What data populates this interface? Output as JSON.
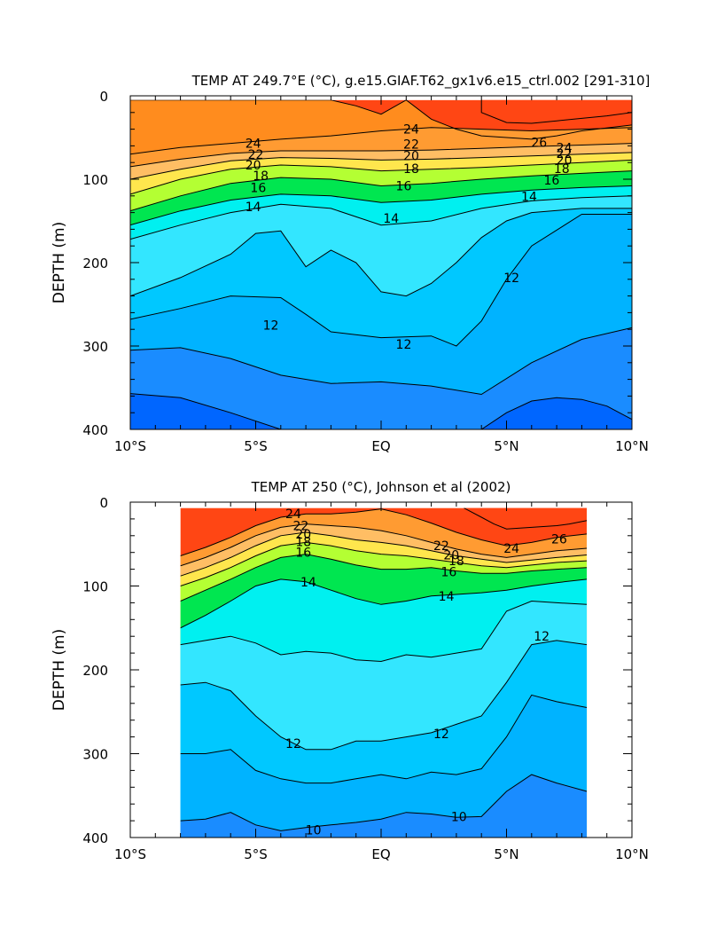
{
  "chart_data": [
    {
      "type": "contour",
      "title": "TEMP AT 249.7°E (°C), g.e15.GIAF.T62_gx1v6.e15_ctrl.002 [291-310]",
      "ylabel": "DEPTH (m)",
      "xlabel": "",
      "xlim": [
        -10,
        10
      ],
      "ylim": [
        400,
        0
      ],
      "x_ticks": [
        -10,
        -5,
        0,
        5,
        10
      ],
      "x_tick_labels": [
        "10°S",
        "5°S",
        "EQ",
        "5°N",
        "10°N"
      ],
      "y_ticks": [
        0,
        100,
        200,
        300,
        400
      ],
      "y_tick_labels": [
        "0",
        "100",
        "200",
        "300",
        "400"
      ],
      "data_x_range": [
        -10,
        10
      ],
      "data_depth_range": [
        5,
        400
      ],
      "fill_colors": {
        "8": "#0050ff",
        "9": "#0066ff",
        "10": "#1a8cff",
        "11": "#00b3ff",
        "12": "#00c8ff",
        "13": "#33e6ff",
        "14": "#00f0f0",
        "15": "#00e6b4",
        "16": "#00e650",
        "17": "#66ff33",
        "18": "#b4ff33",
        "19": "#ffff33",
        "20": "#ffe64d",
        "21": "#ffd264",
        "22": "#ffbe64",
        "23": "#ffaa46",
        "24": "#ff9b32",
        "26": "#ff8c1e",
        "28": "#ff4614"
      },
      "contours": [
        {
          "level": 9,
          "x": [
            -10,
            -8,
            -6,
            -4
          ],
          "depth": [
            357,
            362,
            380,
            400
          ]
        },
        {
          "level": 9,
          "x": [
            4,
            5,
            6,
            7,
            8,
            9,
            10
          ],
          "depth": [
            400,
            380,
            366,
            362,
            364,
            372,
            388
          ]
        },
        {
          "level": 10,
          "x": [
            -10,
            -8,
            -6,
            -4,
            -2,
            0,
            2,
            4,
            6,
            8,
            10
          ],
          "depth": [
            305,
            302,
            315,
            335,
            345,
            343,
            348,
            358,
            320,
            292,
            278
          ]
        },
        {
          "level": 11,
          "x": [
            -10,
            -8,
            -6,
            -4,
            -3,
            -2,
            0,
            2,
            3,
            4,
            5,
            6,
            8,
            10
          ],
          "depth": [
            268,
            255,
            240,
            242,
            262,
            283,
            290,
            288,
            300,
            270,
            220,
            180,
            142,
            142
          ]
        },
        {
          "level": 12,
          "x": [
            -10,
            -8,
            -6,
            -5,
            -4,
            -3,
            -2,
            -1,
            0,
            1,
            2,
            3,
            4,
            5,
            6,
            8,
            10
          ],
          "depth": [
            240,
            218,
            190,
            165,
            162,
            205,
            185,
            200,
            235,
            240,
            225,
            200,
            170,
            150,
            140,
            135,
            135
          ]
        },
        {
          "level": 13,
          "x": [
            -10,
            -8,
            -6,
            -4,
            -2,
            0,
            2,
            4,
            6,
            8,
            10
          ],
          "depth": [
            172,
            155,
            140,
            130,
            135,
            155,
            150,
            135,
            126,
            122,
            120
          ]
        },
        {
          "level": 14,
          "x": [
            -10,
            -8,
            -6,
            -4,
            -2,
            0,
            2,
            4,
            6,
            8,
            10
          ],
          "depth": [
            155,
            138,
            125,
            118,
            120,
            128,
            125,
            118,
            113,
            110,
            108
          ]
        },
        {
          "level": 16,
          "x": [
            -10,
            -8,
            -6,
            -4,
            -2,
            0,
            2,
            4,
            6,
            8,
            10
          ],
          "depth": [
            138,
            120,
            105,
            98,
            100,
            108,
            105,
            100,
            96,
            93,
            90
          ]
        },
        {
          "level": 18,
          "x": [
            -10,
            -8,
            -6,
            -4,
            -2,
            0,
            2,
            4,
            6,
            8,
            10
          ],
          "depth": [
            118,
            100,
            88,
            83,
            85,
            90,
            88,
            86,
            83,
            80,
            77
          ]
        },
        {
          "level": 20,
          "x": [
            -10,
            -8,
            -6,
            -4,
            -2,
            0,
            2,
            4,
            6,
            8,
            10
          ],
          "depth": [
            100,
            88,
            78,
            74,
            75,
            77,
            76,
            74,
            72,
            70,
            68
          ]
        },
        {
          "level": 22,
          "x": [
            -10,
            -8,
            -6,
            -4,
            -2,
            0,
            2,
            4,
            6,
            8,
            10
          ],
          "depth": [
            85,
            76,
            69,
            66,
            66,
            66,
            65,
            63,
            61,
            59,
            57
          ]
        },
        {
          "level": 24,
          "x": [
            -10,
            -8,
            -6,
            -4,
            -2,
            0,
            2,
            4,
            6,
            8,
            10
          ],
          "depth": [
            70,
            62,
            57,
            52,
            48,
            42,
            38,
            40,
            42,
            40,
            38
          ]
        },
        {
          "level": 26,
          "x": [
            -10,
            -8,
            -6,
            -4,
            -3,
            -2,
            -1,
            0,
            1,
            2,
            3,
            4,
            5,
            6,
            7,
            8,
            10
          ],
          "depth": [
            5,
            5,
            5,
            5,
            5,
            5,
            12,
            22,
            5,
            28,
            40,
            48,
            50,
            52,
            48,
            42,
            35
          ]
        },
        {
          "level": 28,
          "x": [
            4,
            4,
            5,
            6,
            7,
            8,
            9,
            10
          ],
          "depth": [
            5,
            20,
            32,
            33,
            30,
            27,
            24,
            20
          ]
        }
      ],
      "contour_labels": [
        {
          "text": "24",
          "x": -5.1,
          "depth": 57
        },
        {
          "text": "22",
          "x": -5.0,
          "depth": 70
        },
        {
          "text": "20",
          "x": -5.1,
          "depth": 83
        },
        {
          "text": "18",
          "x": -4.8,
          "depth": 96
        },
        {
          "text": "16",
          "x": -4.9,
          "depth": 110
        },
        {
          "text": "14",
          "x": -5.1,
          "depth": 133
        },
        {
          "text": "24",
          "x": 1.2,
          "depth": 40
        },
        {
          "text": "22",
          "x": 1.2,
          "depth": 58
        },
        {
          "text": "20",
          "x": 1.2,
          "depth": 72
        },
        {
          "text": "18",
          "x": 1.2,
          "depth": 87
        },
        {
          "text": "16",
          "x": 0.9,
          "depth": 108
        },
        {
          "text": "14",
          "x": 0.4,
          "depth": 147
        },
        {
          "text": "26",
          "x": 6.3,
          "depth": 56
        },
        {
          "text": "24",
          "x": 7.3,
          "depth": 62
        },
        {
          "text": "22",
          "x": 7.3,
          "depth": 69
        },
        {
          "text": "20",
          "x": 7.3,
          "depth": 77
        },
        {
          "text": "18",
          "x": 7.2,
          "depth": 87
        },
        {
          "text": "16",
          "x": 6.8,
          "depth": 101
        },
        {
          "text": "14",
          "x": 5.9,
          "depth": 121
        },
        {
          "text": "12",
          "x": 5.2,
          "depth": 218
        },
        {
          "text": "12",
          "x": -4.4,
          "depth": 275
        },
        {
          "text": "12",
          "x": 0.9,
          "depth": 298
        }
      ]
    },
    {
      "type": "contour",
      "title": "TEMP AT 250 (°C), Johnson et al (2002)",
      "ylabel": "DEPTH (m)",
      "xlabel": "",
      "xlim": [
        -10,
        10
      ],
      "ylim": [
        400,
        0
      ],
      "x_ticks": [
        -10,
        -5,
        0,
        5,
        10
      ],
      "x_tick_labels": [
        "10°S",
        "5°S",
        "EQ",
        "5°N",
        "10°N"
      ],
      "y_ticks": [
        0,
        100,
        200,
        300,
        400
      ],
      "y_tick_labels": [
        "0",
        "100",
        "200",
        "300",
        "400"
      ],
      "data_x_range": [
        -8,
        8.2
      ],
      "data_depth_range": [
        7,
        400
      ],
      "fill_colors": {
        "8": "#0050ff",
        "9": "#0066ff",
        "10": "#1a8cff",
        "11": "#00b3ff",
        "12": "#00c8ff",
        "13": "#33e6ff",
        "14": "#00f0f0",
        "15": "#00e6b4",
        "16": "#00e650",
        "17": "#66ff33",
        "18": "#b4ff33",
        "19": "#ffff33",
        "20": "#ffe64d",
        "21": "#ffd264",
        "22": "#ffbe64",
        "23": "#ffaa46",
        "24": "#ff9b32",
        "26": "#ff8c1e",
        "28": "#ff4614"
      },
      "contours": [
        {
          "level": 10,
          "x": [
            -8,
            -7,
            -6,
            -5,
            -4,
            -3,
            -2,
            -1,
            0,
            1,
            2,
            3,
            4,
            5,
            6,
            7,
            8.2
          ],
          "depth": [
            380,
            378,
            370,
            385,
            392,
            388,
            385,
            382,
            378,
            370,
            372,
            376,
            375,
            345,
            325,
            335,
            345
          ]
        },
        {
          "level": 11,
          "x": [
            -8,
            -7,
            -6,
            -5,
            -4,
            -3,
            -2,
            -1,
            0,
            1,
            2,
            3,
            4,
            5,
            6,
            7,
            8.2
          ],
          "depth": [
            300,
            300,
            295,
            320,
            330,
            335,
            335,
            330,
            325,
            330,
            322,
            325,
            318,
            280,
            230,
            238,
            245
          ]
        },
        {
          "level": 12,
          "x": [
            -8,
            -7,
            -6,
            -5,
            -4,
            -3,
            -2,
            -1,
            0,
            1,
            2,
            3,
            4,
            5,
            6,
            7,
            8.2
          ],
          "depth": [
            218,
            215,
            225,
            255,
            280,
            295,
            295,
            285,
            285,
            280,
            275,
            265,
            255,
            215,
            170,
            165,
            170
          ]
        },
        {
          "level": 13,
          "x": [
            -8,
            -7,
            -6,
            -5,
            -4,
            -3,
            -2,
            -1,
            0,
            1,
            2,
            3,
            4,
            5,
            6,
            7,
            8.2
          ],
          "depth": [
            170,
            165,
            160,
            168,
            182,
            178,
            180,
            188,
            190,
            182,
            185,
            180,
            175,
            130,
            118,
            120,
            122
          ]
        },
        {
          "level": 14,
          "x": [
            -8,
            -7,
            -6,
            -5,
            -4,
            -3,
            -2,
            -1,
            0,
            1,
            2,
            3,
            4,
            5,
            6,
            7,
            8.2
          ],
          "depth": [
            150,
            135,
            118,
            100,
            92,
            95,
            105,
            115,
            122,
            118,
            112,
            110,
            108,
            105,
            100,
            96,
            92
          ]
        },
        {
          "level": 16,
          "x": [
            -8,
            -7,
            -6,
            -5,
            -4,
            -3,
            -2,
            -1,
            0,
            1,
            2,
            3,
            4,
            5,
            6,
            7,
            8.2
          ],
          "depth": [
            118,
            105,
            92,
            78,
            66,
            62,
            68,
            75,
            80,
            80,
            78,
            82,
            85,
            85,
            82,
            80,
            78
          ]
        },
        {
          "level": 18,
          "x": [
            -8,
            -7,
            -6,
            -5,
            -4,
            -3,
            -2,
            -1,
            0,
            1,
            2,
            3,
            4,
            5,
            6,
            7,
            8.2
          ],
          "depth": [
            100,
            90,
            78,
            64,
            52,
            48,
            52,
            58,
            62,
            64,
            68,
            72,
            76,
            78,
            75,
            72,
            70
          ]
        },
        {
          "level": 20,
          "x": [
            -8,
            -7,
            -6,
            -5,
            -4,
            -3,
            -2,
            -1,
            0,
            1,
            2,
            3,
            4,
            5,
            6,
            7,
            8.2
          ],
          "depth": [
            88,
            78,
            66,
            52,
            40,
            36,
            40,
            45,
            48,
            52,
            58,
            64,
            68,
            72,
            69,
            66,
            63
          ]
        },
        {
          "level": 22,
          "x": [
            -8,
            -7,
            -6,
            -5,
            -4,
            -3,
            -2,
            -1,
            0,
            1,
            2,
            3,
            4,
            5,
            6,
            7,
            8.2
          ],
          "depth": [
            76,
            66,
            54,
            40,
            30,
            26,
            28,
            30,
            34,
            40,
            48,
            56,
            62,
            66,
            62,
            58,
            55
          ]
        },
        {
          "level": 24,
          "x": [
            -8,
            -7,
            -6,
            -5,
            -4,
            -3,
            -2,
            -1,
            0,
            1,
            2,
            3,
            4,
            5,
            6,
            7,
            8.2
          ],
          "depth": [
            64,
            54,
            42,
            28,
            18,
            14,
            14,
            12,
            8,
            15,
            25,
            36,
            45,
            52,
            48,
            42,
            38
          ]
        },
        {
          "level": 26,
          "x": [
            3.3,
            4,
            4.5,
            5,
            6,
            7,
            7.5,
            8.2
          ],
          "depth": [
            7,
            18,
            26,
            32,
            30,
            28,
            26,
            22
          ]
        }
      ],
      "contour_labels": [
        {
          "text": "24",
          "x": -3.5,
          "depth": 14
        },
        {
          "text": "22",
          "x": -3.2,
          "depth": 28
        },
        {
          "text": "20",
          "x": -3.1,
          "depth": 38
        },
        {
          "text": "18",
          "x": -3.1,
          "depth": 47
        },
        {
          "text": "16",
          "x": -3.1,
          "depth": 60
        },
        {
          "text": "14",
          "x": -2.9,
          "depth": 95
        },
        {
          "text": "22",
          "x": 2.4,
          "depth": 52
        },
        {
          "text": "20",
          "x": 2.8,
          "depth": 63
        },
        {
          "text": "18",
          "x": 3.0,
          "depth": 70
        },
        {
          "text": "16",
          "x": 2.7,
          "depth": 83
        },
        {
          "text": "14",
          "x": 2.6,
          "depth": 112
        },
        {
          "text": "24",
          "x": 5.2,
          "depth": 55
        },
        {
          "text": "26",
          "x": 7.1,
          "depth": 44
        },
        {
          "text": "12",
          "x": 6.4,
          "depth": 160
        },
        {
          "text": "12",
          "x": -3.5,
          "depth": 288
        },
        {
          "text": "12",
          "x": 2.4,
          "depth": 276
        },
        {
          "text": "10",
          "x": -2.7,
          "depth": 391
        },
        {
          "text": "10",
          "x": 3.1,
          "depth": 375
        }
      ]
    }
  ]
}
